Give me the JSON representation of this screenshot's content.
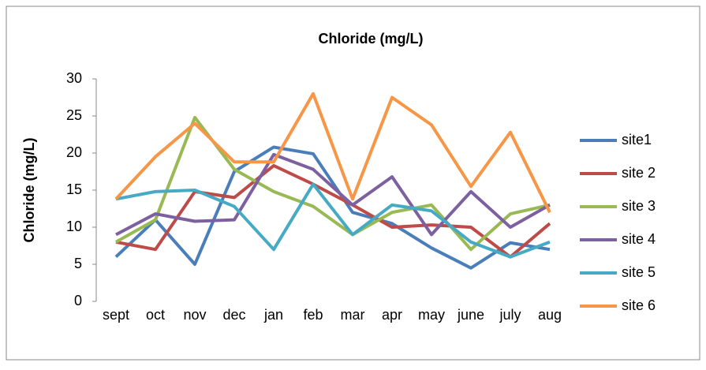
{
  "chart_data": {
    "type": "line",
    "title": "Chloride (mg/L)",
    "y_label": "Chloride (mg/L)",
    "categories": [
      "sept",
      "oct",
      "nov",
      "dec",
      "jan",
      "feb",
      "mar",
      "apr",
      "may",
      "june",
      "july",
      "aug"
    ],
    "series": [
      {
        "name": "site1",
        "color": "#4a7ebb",
        "values": [
          6,
          11,
          5,
          17.5,
          20.8,
          19.9,
          12,
          10.5,
          7.2,
          4.5,
          7.9,
          7
        ]
      },
      {
        "name": "site 2",
        "color": "#be4b48",
        "values": [
          8,
          7,
          14.8,
          14,
          18.3,
          15.8,
          13,
          10,
          10.3,
          10,
          6,
          10.5
        ]
      },
      {
        "name": "site 3",
        "color": "#98b954",
        "values": [
          8,
          11,
          24.8,
          17.8,
          14.8,
          12.8,
          9,
          12,
          13,
          7,
          11.8,
          13
        ]
      },
      {
        "name": "site 4",
        "color": "#7d60a0",
        "values": [
          9,
          11.8,
          10.8,
          11,
          19.8,
          17.8,
          13,
          16.8,
          9,
          14.8,
          10,
          13
        ]
      },
      {
        "name": "site 5",
        "color": "#46aac5",
        "values": [
          13.8,
          14.8,
          15,
          12.8,
          7,
          15.8,
          9,
          13,
          12.2,
          8,
          6,
          8
        ]
      },
      {
        "name": "site 6",
        "color": "#f79646",
        "values": [
          13.8,
          19.5,
          24,
          18.8,
          18.8,
          28,
          13.8,
          27.5,
          23.8,
          15.5,
          22.8,
          12
        ]
      }
    ],
    "ylim": [
      0,
      30
    ],
    "yticks": [
      0,
      5,
      10,
      15,
      20,
      25,
      30
    ],
    "grid": false,
    "legend": "right"
  }
}
